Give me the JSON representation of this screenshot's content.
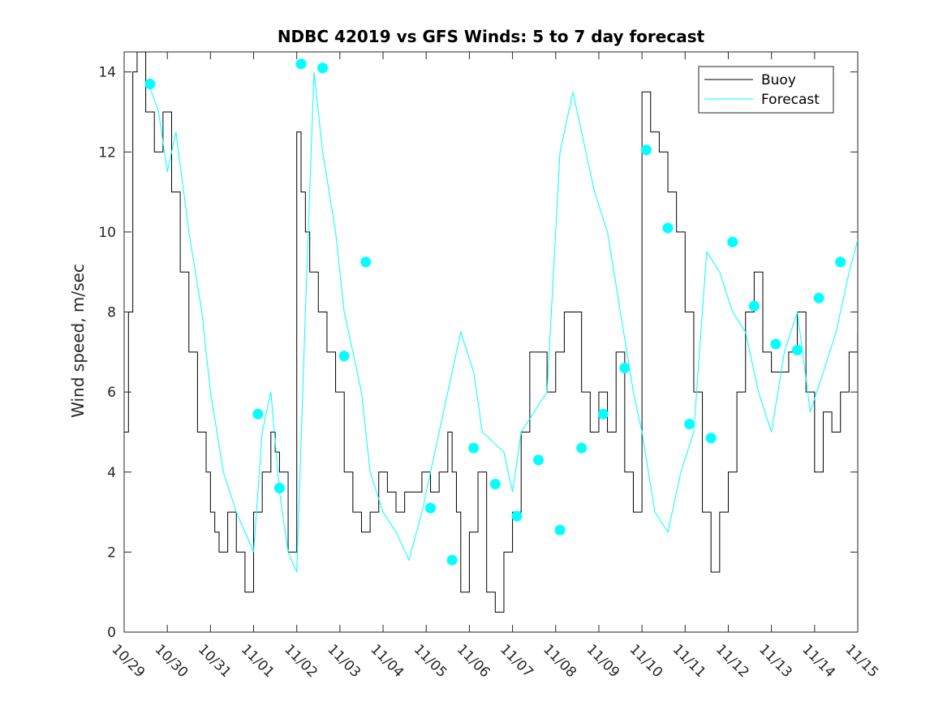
{
  "chart_data": {
    "type": "line",
    "title": "NDBC 42019 vs GFS Winds: 5 to 7 day forecast",
    "xlabel": "",
    "ylabel": "Wind speed, m/sec",
    "xlim": [
      0,
      17
    ],
    "ylim": [
      0,
      14.5
    ],
    "yticks": [
      0,
      2,
      4,
      6,
      8,
      10,
      12,
      14
    ],
    "x_tick_labels": [
      "10/29",
      "10/30",
      "10/31",
      "11/01",
      "11/02",
      "11/03",
      "11/04",
      "11/05",
      "11/06",
      "11/07",
      "11/08",
      "11/09",
      "11/10",
      "11/11",
      "11/12",
      "11/13",
      "11/14",
      "11/15"
    ],
    "legend": {
      "location": "top-right",
      "entries": [
        "Buoy",
        "Forecast"
      ]
    },
    "colors": {
      "buoy": "#000000",
      "forecast": "#00ffff",
      "axes": "#262626"
    },
    "series": [
      {
        "name": "Buoy",
        "x": [
          0,
          0.1,
          0.2,
          0.3,
          0.5,
          0.7,
          0.9,
          1.1,
          1.3,
          1.5,
          1.7,
          1.9,
          2.0,
          2.1,
          2.2,
          2.4,
          2.6,
          2.8,
          3.0,
          3.2,
          3.4,
          3.5,
          3.6,
          3.8,
          4.0,
          4.1,
          4.2,
          4.3,
          4.5,
          4.7,
          4.9,
          5.1,
          5.3,
          5.5,
          5.7,
          5.9,
          6.1,
          6.3,
          6.5,
          6.7,
          6.9,
          7.1,
          7.3,
          7.5,
          7.6,
          7.7,
          7.8,
          8.0,
          8.2,
          8.4,
          8.6,
          8.8,
          9.0,
          9.2,
          9.4,
          9.6,
          9.8,
          10.0,
          10.2,
          10.4,
          10.6,
          10.8,
          11.0,
          11.2,
          11.4,
          11.6,
          11.8,
          12.0,
          12.2,
          12.4,
          12.6,
          12.8,
          13.0,
          13.2,
          13.4,
          13.6,
          13.8,
          14.0,
          14.2,
          14.4,
          14.6,
          14.8,
          15.0,
          15.2,
          15.4,
          15.6,
          15.8,
          16.0,
          16.2,
          16.4,
          16.6,
          16.8,
          17.0
        ],
        "values": [
          5,
          8,
          14,
          14.5,
          13,
          12,
          13,
          11,
          9,
          7,
          5,
          4,
          3,
          2.5,
          2,
          3,
          2,
          1,
          3,
          4,
          5,
          4.5,
          4,
          2,
          12.5,
          11,
          10,
          9,
          8,
          7,
          6,
          4,
          3,
          2.5,
          3,
          4,
          3.5,
          3,
          3.5,
          3.5,
          4,
          3.5,
          4,
          5,
          4,
          3,
          1,
          2.5,
          4,
          1,
          0.5,
          2,
          3,
          5,
          7,
          7,
          6,
          7,
          8,
          8,
          6,
          5,
          6,
          5,
          7,
          4,
          3,
          13.5,
          12.5,
          12,
          11,
          10,
          8,
          6,
          3,
          1.5,
          3,
          4,
          6,
          8,
          9,
          7,
          6.5,
          6.5,
          7,
          8,
          6,
          4,
          5.5,
          5,
          6,
          7,
          7.5
        ]
      },
      {
        "name": "Forecast",
        "x": [
          0.6,
          0.8,
          1.0,
          1.2,
          1.5,
          1.8,
          2.0,
          2.3,
          2.6,
          3.0,
          3.2,
          3.4,
          3.6,
          3.8,
          4.0,
          4.2,
          4.4,
          4.6,
          4.9,
          5.1,
          5.3,
          5.5,
          5.7,
          6.0,
          6.3,
          6.6,
          6.9,
          7.2,
          7.5,
          7.8,
          8.1,
          8.3,
          8.5,
          8.8,
          9.0,
          9.2,
          9.5,
          9.8,
          10.1,
          10.4,
          10.6,
          10.9,
          11.2,
          11.5,
          11.8,
          12.0,
          12.3,
          12.6,
          12.9,
          13.2,
          13.5,
          13.8,
          14.1,
          14.4,
          14.7,
          15.0,
          15.3,
          15.6,
          15.9,
          16.2,
          16.5,
          16.8,
          17.0
        ],
        "values": [
          13.6,
          13,
          11.5,
          12.5,
          10,
          8,
          6,
          4,
          3,
          2,
          5,
          6,
          3.5,
          2,
          1.5,
          8,
          14,
          12,
          10,
          8,
          7,
          6,
          4,
          3,
          2.5,
          1.8,
          3,
          4.5,
          6,
          7.5,
          6.5,
          5,
          4.8,
          4.5,
          3.5,
          5,
          5.5,
          6,
          12,
          13.5,
          12.5,
          11,
          10,
          8,
          6,
          5,
          3,
          2.5,
          4,
          5,
          9.5,
          9,
          8,
          7.5,
          6,
          5,
          7,
          8,
          5.5,
          6.5,
          7.5,
          9,
          9.8
        ]
      }
    ],
    "forecast_markers": {
      "x": [
        0.6,
        3.1,
        3.6,
        4.1,
        4.6,
        5.1,
        5.6,
        7.1,
        7.6,
        8.1,
        8.6,
        9.1,
        9.6,
        10.1,
        10.6,
        11.1,
        11.6,
        12.1,
        12.6,
        13.1,
        13.6,
        14.1,
        14.6,
        15.1,
        15.6,
        16.1,
        16.6
      ],
      "values": [
        13.7,
        5.45,
        3.6,
        14.2,
        14.1,
        6.9,
        9.25,
        3.1,
        1.8,
        4.6,
        3.7,
        2.9,
        4.3,
        2.55,
        4.6,
        5.45,
        6.6,
        12.05,
        10.1,
        5.2,
        4.85,
        9.75,
        8.15,
        7.2,
        7.05,
        8.35,
        9.25
      ]
    }
  }
}
